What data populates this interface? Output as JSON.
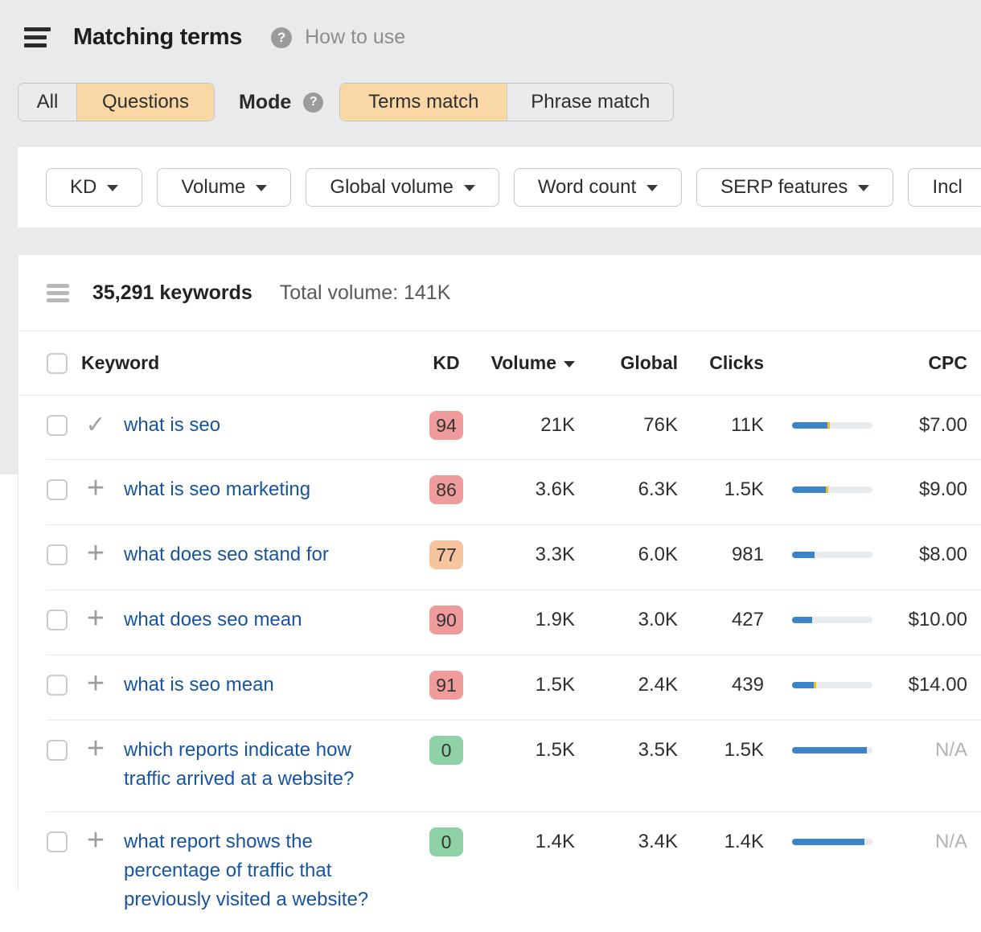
{
  "header": {
    "title": "Matching terms",
    "how_to_use": "How to use",
    "tabs": {
      "all": "All",
      "questions": "Questions"
    },
    "mode_label": "Mode",
    "modes": {
      "terms": "Terms match",
      "phrase": "Phrase match"
    }
  },
  "filters": [
    "KD",
    "Volume",
    "Global volume",
    "Word count",
    "SERP features",
    "Incl"
  ],
  "summary": {
    "keywords_count": "35,291 keywords",
    "total_volume": "Total volume: 141K"
  },
  "table": {
    "columns": {
      "keyword": "Keyword",
      "kd": "KD",
      "volume": "Volume",
      "global": "Global",
      "clicks": "Clicks",
      "cpc": "CPC"
    },
    "rows": [
      {
        "keyword": "what is seo",
        "added": true,
        "kd": "94",
        "kd_level": "red",
        "volume": "21K",
        "global": "76K",
        "clicks": "11K",
        "bar_blue": 44,
        "bar_yellow": 3,
        "cpc": "$7.00"
      },
      {
        "keyword": "what is seo marketing",
        "added": false,
        "kd": "86",
        "kd_level": "red",
        "volume": "3.6K",
        "global": "6.3K",
        "clicks": "1.5K",
        "bar_blue": 42,
        "bar_yellow": 3,
        "cpc": "$9.00"
      },
      {
        "keyword": "what does seo stand for",
        "added": false,
        "kd": "77",
        "kd_level": "orange",
        "volume": "3.3K",
        "global": "6.0K",
        "clicks": "981",
        "bar_blue": 28,
        "bar_yellow": 0,
        "cpc": "$8.00"
      },
      {
        "keyword": "what does seo mean",
        "added": false,
        "kd": "90",
        "kd_level": "red",
        "volume": "1.9K",
        "global": "3.0K",
        "clicks": "427",
        "bar_blue": 25,
        "bar_yellow": 0,
        "cpc": "$10.00"
      },
      {
        "keyword": "what is seo mean",
        "added": false,
        "kd": "91",
        "kd_level": "red",
        "volume": "1.5K",
        "global": "2.4K",
        "clicks": "439",
        "bar_blue": 27,
        "bar_yellow": 3,
        "cpc": "$14.00"
      },
      {
        "keyword": "which reports indicate how traffic arrived at a website?",
        "added": false,
        "kd": "0",
        "kd_level": "green",
        "volume": "1.5K",
        "global": "3.5K",
        "clicks": "1.5K",
        "bar_blue": 93,
        "bar_yellow": 0,
        "cpc": "N/A"
      },
      {
        "keyword": "what report shows the percentage of traffic that previously visited a website?",
        "added": false,
        "kd": "0",
        "kd_level": "green",
        "volume": "1.4K",
        "global": "3.4K",
        "clicks": "1.4K",
        "bar_blue": 90,
        "bar_yellow": 0,
        "cpc": "N/A"
      }
    ]
  },
  "icons": {
    "menu": "hamburger",
    "help": "question-circle",
    "added": "check",
    "add": "plus",
    "sort": "caret-down"
  },
  "colors": {
    "accent_peach": "#fad8a6",
    "link_blue": "#17549f",
    "kd_red": "#f09b9b",
    "kd_orange": "#f6c49e",
    "kd_green": "#8fd1a6",
    "bar_blue": "#3b84c9",
    "bar_yellow": "#eec11f",
    "bar_track": "#e8ebee",
    "page_gray": "#e9eaeb"
  }
}
